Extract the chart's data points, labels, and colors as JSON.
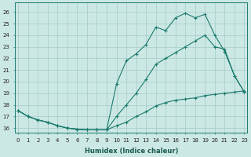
{
  "xlabel": "Humidex (Indice chaleur)",
  "bg_color": "#cce8e4",
  "grid_color": "#aacfcc",
  "line_color": "#1a7a6e",
  "x_ticks": [
    0,
    1,
    2,
    3,
    4,
    5,
    6,
    7,
    8,
    9,
    10,
    11,
    12,
    13,
    14,
    15,
    16,
    17,
    18,
    19,
    20,
    21,
    22,
    23
  ],
  "y_ticks": [
    16,
    17,
    18,
    19,
    20,
    21,
    22,
    23,
    24,
    25,
    26
  ],
  "xlim": [
    -0.3,
    23.3
  ],
  "ylim": [
    15.6,
    26.8
  ],
  "line1_x": [
    0,
    1,
    2,
    3,
    4,
    5,
    6,
    7,
    8,
    9,
    10,
    11,
    12,
    13,
    14,
    15,
    16,
    17,
    18,
    19,
    20,
    21,
    22,
    23
  ],
  "line1_y": [
    17.5,
    17.0,
    16.7,
    16.5,
    16.2,
    16.0,
    15.9,
    15.85,
    15.85,
    15.85,
    19.8,
    21.8,
    22.4,
    23.2,
    24.7,
    24.4,
    25.5,
    25.9,
    25.5,
    25.8,
    24.0,
    22.6,
    20.5,
    19.1
  ],
  "line2_x": [
    0,
    1,
    2,
    3,
    4,
    5,
    6,
    7,
    8,
    9,
    10,
    11,
    12,
    13,
    14,
    15,
    16,
    17,
    18,
    19,
    20,
    21,
    22,
    23
  ],
  "line2_y": [
    17.5,
    17.0,
    16.7,
    16.5,
    16.2,
    16.0,
    15.9,
    15.85,
    15.85,
    15.85,
    17.0,
    18.0,
    19.0,
    20.2,
    21.5,
    22.0,
    22.5,
    23.0,
    23.5,
    24.0,
    23.0,
    22.8,
    20.5,
    19.1
  ],
  "line3_x": [
    0,
    1,
    2,
    3,
    4,
    5,
    6,
    7,
    8,
    9,
    10,
    11,
    12,
    13,
    14,
    15,
    16,
    17,
    18,
    19,
    20,
    21,
    22,
    23
  ],
  "line3_y": [
    17.5,
    17.0,
    16.7,
    16.5,
    16.2,
    16.0,
    15.9,
    15.85,
    15.85,
    15.85,
    16.2,
    16.5,
    17.0,
    17.4,
    17.9,
    18.2,
    18.4,
    18.5,
    18.6,
    18.8,
    18.9,
    19.0,
    19.1,
    19.2
  ]
}
